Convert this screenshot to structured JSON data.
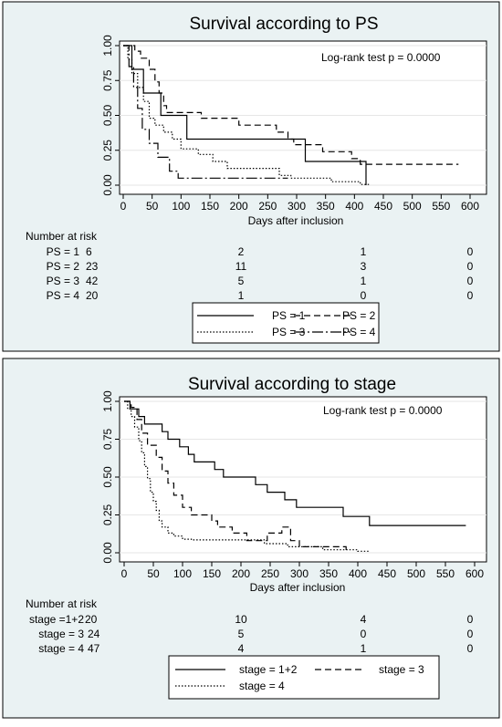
{
  "panels": [
    {
      "title": "Survival according to PS",
      "annotation": "Log-rank test p = 0.0000",
      "xlabel": "Days after inclusion",
      "risk_title": "Number at risk",
      "risk_rows": [
        {
          "label": "PS = 1",
          "values": [
            "6",
            "2",
            "1",
            "0"
          ]
        },
        {
          "label": "PS = 2",
          "values": [
            "23",
            "11",
            "3",
            "0"
          ]
        },
        {
          "label": "PS = 3",
          "values": [
            "42",
            "5",
            "1",
            "0"
          ]
        },
        {
          "label": "PS = 4",
          "values": [
            "20",
            "1",
            "0",
            "0"
          ]
        }
      ]
    },
    {
      "title": "Survival according to stage",
      "annotation": "Log-rank test p = 0.0000",
      "xlabel": "Days after inclusion",
      "risk_title": "Number at risk",
      "risk_rows": [
        {
          "label": "stage =1+2",
          "values": [
            "20",
            "10",
            "4",
            "0"
          ]
        },
        {
          "label": "stage = 3",
          "values": [
            "24",
            "5",
            "0",
            "0"
          ]
        },
        {
          "label": "stage = 4",
          "values": [
            "47",
            "4",
            "1",
            "0"
          ]
        }
      ]
    }
  ],
  "chart_data": [
    {
      "type": "line",
      "step": true,
      "title": "Survival according to PS",
      "xlabel": "Days after inclusion",
      "ylabel": "",
      "xlim": [
        0,
        600
      ],
      "ylim": [
        0,
        1
      ],
      "xticks": [
        0,
        50,
        100,
        150,
        200,
        250,
        300,
        350,
        400,
        450,
        500,
        550,
        600
      ],
      "yticks": [
        "0.00",
        "0.25",
        "0.50",
        "0.75",
        "1.00"
      ],
      "risk_times": [
        0,
        200,
        400,
        600
      ],
      "series": [
        {
          "name": "PS = 1",
          "dash": "solid",
          "points": [
            [
              0,
              1.0
            ],
            [
              15,
              1.0
            ],
            [
              15,
              0.83
            ],
            [
              35,
              0.83
            ],
            [
              35,
              0.66
            ],
            [
              65,
              0.66
            ],
            [
              65,
              0.5
            ],
            [
              110,
              0.5
            ],
            [
              110,
              0.33
            ],
            [
              315,
              0.33
            ],
            [
              315,
              0.17
            ],
            [
              420,
              0.17
            ],
            [
              420,
              0.0
            ]
          ]
        },
        {
          "name": "PS = 2",
          "dash": "dashed",
          "points": [
            [
              0,
              1.0
            ],
            [
              20,
              1.0
            ],
            [
              20,
              0.96
            ],
            [
              30,
              0.96
            ],
            [
              30,
              0.91
            ],
            [
              45,
              0.91
            ],
            [
              45,
              0.83
            ],
            [
              55,
              0.83
            ],
            [
              55,
              0.74
            ],
            [
              62,
              0.74
            ],
            [
              62,
              0.66
            ],
            [
              70,
              0.66
            ],
            [
              70,
              0.57
            ],
            [
              75,
              0.57
            ],
            [
              75,
              0.52
            ],
            [
              135,
              0.52
            ],
            [
              135,
              0.48
            ],
            [
              200,
              0.48
            ],
            [
              200,
              0.43
            ],
            [
              265,
              0.43
            ],
            [
              265,
              0.38
            ],
            [
              285,
              0.38
            ],
            [
              285,
              0.33
            ],
            [
              295,
              0.33
            ],
            [
              295,
              0.29
            ],
            [
              345,
              0.29
            ],
            [
              345,
              0.24
            ],
            [
              395,
              0.24
            ],
            [
              395,
              0.19
            ],
            [
              410,
              0.19
            ],
            [
              410,
              0.15
            ],
            [
              580,
              0.15
            ]
          ]
        },
        {
          "name": "PS = 3",
          "dash": "dotted",
          "points": [
            [
              0,
              1.0
            ],
            [
              8,
              1.0
            ],
            [
              8,
              0.9
            ],
            [
              15,
              0.9
            ],
            [
              15,
              0.8
            ],
            [
              25,
              0.8
            ],
            [
              25,
              0.7
            ],
            [
              35,
              0.7
            ],
            [
              35,
              0.6
            ],
            [
              45,
              0.6
            ],
            [
              45,
              0.48
            ],
            [
              55,
              0.48
            ],
            [
              55,
              0.43
            ],
            [
              70,
              0.43
            ],
            [
              70,
              0.38
            ],
            [
              85,
              0.38
            ],
            [
              85,
              0.33
            ],
            [
              100,
              0.33
            ],
            [
              100,
              0.26
            ],
            [
              130,
              0.26
            ],
            [
              130,
              0.22
            ],
            [
              155,
              0.22
            ],
            [
              155,
              0.17
            ],
            [
              180,
              0.17
            ],
            [
              180,
              0.12
            ],
            [
              270,
              0.12
            ],
            [
              270,
              0.07
            ],
            [
              290,
              0.07
            ],
            [
              290,
              0.05
            ],
            [
              360,
              0.05
            ],
            [
              360,
              0.025
            ],
            [
              410,
              0.025
            ],
            [
              410,
              0.005
            ],
            [
              425,
              0.005
            ]
          ]
        },
        {
          "name": "PS = 4",
          "dash": "dashdot",
          "points": [
            [
              0,
              1.0
            ],
            [
              10,
              1.0
            ],
            [
              10,
              0.85
            ],
            [
              18,
              0.85
            ],
            [
              18,
              0.7
            ],
            [
              25,
              0.7
            ],
            [
              25,
              0.55
            ],
            [
              33,
              0.55
            ],
            [
              33,
              0.4
            ],
            [
              45,
              0.4
            ],
            [
              45,
              0.3
            ],
            [
              60,
              0.3
            ],
            [
              60,
              0.2
            ],
            [
              80,
              0.2
            ],
            [
              80,
              0.1
            ],
            [
              95,
              0.1
            ],
            [
              95,
              0.05
            ],
            [
              285,
              0.05
            ]
          ]
        }
      ]
    },
    {
      "type": "line",
      "step": true,
      "title": "Survival according to stage",
      "xlabel": "Days after inclusion",
      "ylabel": "",
      "xlim": [
        0,
        600
      ],
      "ylim": [
        0,
        1
      ],
      "xticks": [
        0,
        50,
        100,
        150,
        200,
        250,
        300,
        350,
        400,
        450,
        500,
        550,
        600
      ],
      "yticks": [
        "0.00",
        "0.25",
        "0.50",
        "0.75",
        "1.00"
      ],
      "risk_times": [
        0,
        200,
        400,
        600
      ],
      "series": [
        {
          "name": "stage = 1+2",
          "dash": "solid",
          "points": [
            [
              0,
              1.0
            ],
            [
              10,
              1.0
            ],
            [
              10,
              0.95
            ],
            [
              25,
              0.95
            ],
            [
              25,
              0.9
            ],
            [
              35,
              0.9
            ],
            [
              35,
              0.85
            ],
            [
              65,
              0.85
            ],
            [
              65,
              0.8
            ],
            [
              75,
              0.8
            ],
            [
              75,
              0.75
            ],
            [
              95,
              0.75
            ],
            [
              95,
              0.7
            ],
            [
              110,
              0.7
            ],
            [
              110,
              0.65
            ],
            [
              120,
              0.65
            ],
            [
              120,
              0.6
            ],
            [
              155,
              0.6
            ],
            [
              155,
              0.55
            ],
            [
              170,
              0.55
            ],
            [
              170,
              0.5
            ],
            [
              225,
              0.5
            ],
            [
              225,
              0.45
            ],
            [
              245,
              0.45
            ],
            [
              245,
              0.4
            ],
            [
              275,
              0.4
            ],
            [
              275,
              0.35
            ],
            [
              295,
              0.35
            ],
            [
              295,
              0.3
            ],
            [
              375,
              0.3
            ],
            [
              375,
              0.24
            ],
            [
              420,
              0.24
            ],
            [
              420,
              0.18
            ],
            [
              585,
              0.18
            ]
          ]
        },
        {
          "name": "stage = 3",
          "dash": "dashed",
          "points": [
            [
              0,
              1.0
            ],
            [
              12,
              1.0
            ],
            [
              12,
              0.96
            ],
            [
              22,
              0.96
            ],
            [
              22,
              0.88
            ],
            [
              30,
              0.88
            ],
            [
              30,
              0.79
            ],
            [
              40,
              0.79
            ],
            [
              40,
              0.71
            ],
            [
              55,
              0.71
            ],
            [
              55,
              0.63
            ],
            [
              65,
              0.63
            ],
            [
              65,
              0.54
            ],
            [
              75,
              0.54
            ],
            [
              75,
              0.46
            ],
            [
              85,
              0.46
            ],
            [
              85,
              0.38
            ],
            [
              100,
              0.38
            ],
            [
              100,
              0.3
            ],
            [
              115,
              0.3
            ],
            [
              115,
              0.25
            ],
            [
              150,
              0.25
            ],
            [
              150,
              0.21
            ],
            [
              160,
              0.21
            ],
            [
              160,
              0.17
            ],
            [
              185,
              0.17
            ],
            [
              185,
              0.13
            ],
            [
              210,
              0.13
            ],
            [
              210,
              0.08
            ],
            [
              245,
              0.08
            ],
            [
              245,
              0.13
            ],
            [
              270,
              0.13
            ],
            [
              270,
              0.17
            ],
            [
              285,
              0.17
            ],
            [
              285,
              0.08
            ],
            [
              300,
              0.08
            ],
            [
              300,
              0.04
            ],
            [
              380,
              0.04
            ],
            [
              380,
              0.0
            ]
          ]
        },
        {
          "name": "stage = 4",
          "dash": "dotted",
          "points": [
            [
              0,
              1.0
            ],
            [
              6,
              1.0
            ],
            [
              6,
              0.95
            ],
            [
              12,
              0.95
            ],
            [
              12,
              0.9
            ],
            [
              18,
              0.9
            ],
            [
              18,
              0.83
            ],
            [
              25,
              0.83
            ],
            [
              25,
              0.74
            ],
            [
              30,
              0.74
            ],
            [
              30,
              0.66
            ],
            [
              35,
              0.66
            ],
            [
              35,
              0.57
            ],
            [
              40,
              0.57
            ],
            [
              40,
              0.49
            ],
            [
              45,
              0.49
            ],
            [
              45,
              0.4
            ],
            [
              50,
              0.4
            ],
            [
              50,
              0.34
            ],
            [
              55,
              0.34
            ],
            [
              55,
              0.28
            ],
            [
              60,
              0.28
            ],
            [
              60,
              0.21
            ],
            [
              65,
              0.21
            ],
            [
              65,
              0.17
            ],
            [
              75,
              0.17
            ],
            [
              75,
              0.13
            ],
            [
              85,
              0.13
            ],
            [
              85,
              0.11
            ],
            [
              100,
              0.11
            ],
            [
              100,
              0.09
            ],
            [
              115,
              0.09
            ],
            [
              115,
              0.085
            ],
            [
              240,
              0.085
            ],
            [
              240,
              0.06
            ],
            [
              280,
              0.06
            ],
            [
              280,
              0.04
            ],
            [
              340,
              0.04
            ],
            [
              340,
              0.02
            ],
            [
              400,
              0.02
            ],
            [
              400,
              0.01
            ],
            [
              420,
              0.01
            ]
          ]
        }
      ]
    }
  ]
}
